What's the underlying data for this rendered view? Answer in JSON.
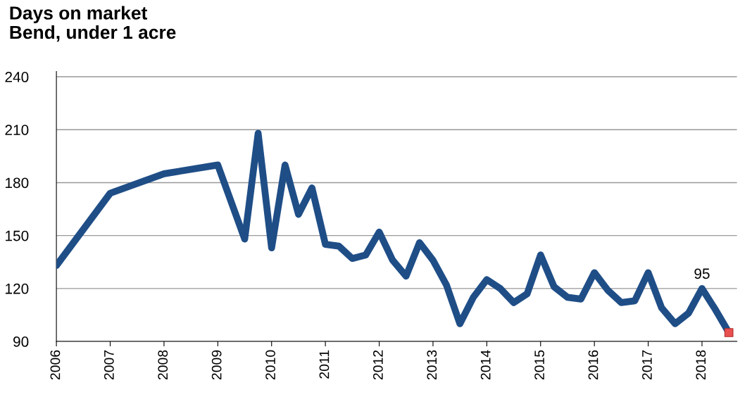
{
  "chart_data": {
    "type": "line",
    "title": "Days on market\nBend, under 1 acre",
    "x": [
      2006,
      2007,
      2008,
      2009,
      2009.5,
      2009.75,
      2010,
      2010.25,
      2010.5,
      2010.75,
      2011,
      2011.25,
      2011.5,
      2011.75,
      2012,
      2012.25,
      2012.5,
      2012.75,
      2013,
      2013.25,
      2013.5,
      2013.75,
      2014,
      2014.25,
      2014.5,
      2014.75,
      2015,
      2015.25,
      2015.5,
      2015.75,
      2016,
      2016.25,
      2016.5,
      2016.75,
      2017,
      2017.25,
      2017.5,
      2017.75,
      2018,
      2018.25,
      2018.5
    ],
    "series": [
      {
        "color": "#1f4e87",
        "marker": "none",
        "values": [
          133,
          174,
          185,
          190,
          148,
          208,
          143,
          190,
          162,
          177,
          145,
          144,
          137,
          139,
          152,
          136,
          127,
          146,
          136,
          122,
          100,
          115,
          125,
          120,
          112,
          117,
          139,
          121,
          115,
          114,
          129,
          119,
          112,
          113,
          129,
          109,
          100,
          106,
          120,
          108,
          95
        ]
      },
      {
        "type": "scatter",
        "color": "#e8504f",
        "marker": "square",
        "x": [
          2018.5
        ],
        "values": [
          95
        ]
      }
    ],
    "annotations": [
      {
        "text": "95",
        "x": 2018,
        "y": 120
      }
    ],
    "xlim": [
      2006,
      2018.65
    ],
    "xticks": [
      2006,
      2007,
      2008,
      2009,
      2010,
      2011,
      2012,
      2013,
      2014,
      2015,
      2016,
      2017,
      2018
    ],
    "ylim": [
      90,
      243
    ],
    "yticks": [
      90,
      120,
      150,
      180,
      210,
      240
    ],
    "grid": "y",
    "line_style": "solid"
  }
}
